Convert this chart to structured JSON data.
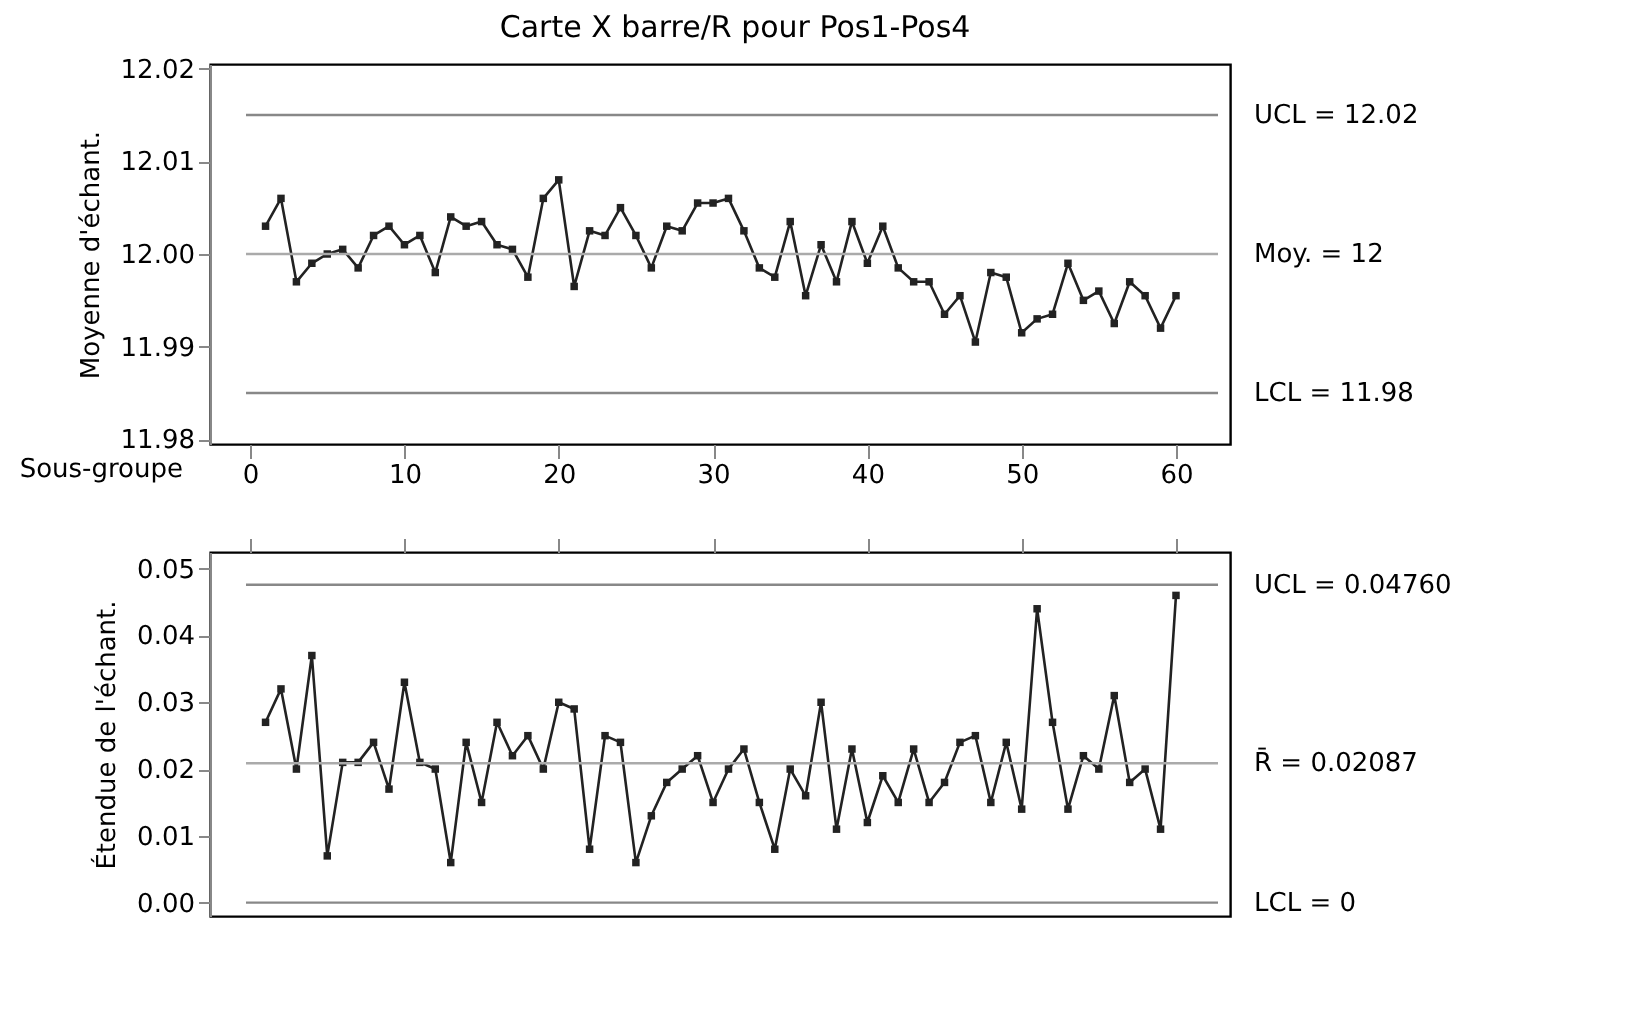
{
  "chart_data": [
    {
      "type": "line",
      "title": "Carte X barre/R pour Pos1-Pos4",
      "xlabel": "Sous-groupe",
      "ylabel": "Moyenne d'échant.",
      "marker": "square",
      "line_style": "solid",
      "grid": false,
      "x": [
        1,
        2,
        3,
        4,
        5,
        6,
        7,
        8,
        9,
        10,
        11,
        12,
        13,
        14,
        15,
        16,
        17,
        18,
        19,
        20,
        21,
        22,
        23,
        24,
        25,
        26,
        27,
        28,
        29,
        30,
        31,
        32,
        33,
        34,
        35,
        36,
        37,
        38,
        39,
        40,
        41,
        42,
        43,
        44,
        45,
        46,
        47,
        48,
        49,
        50,
        51,
        52,
        53,
        54,
        55,
        56,
        57,
        58,
        59,
        60
      ],
      "series": [
        {
          "color": "#222222",
          "values": [
            12.003,
            12.006,
            11.997,
            11.999,
            12.0,
            12.0005,
            11.9985,
            12.002,
            12.003,
            12.001,
            12.002,
            11.998,
            12.004,
            12.003,
            12.0035,
            12.001,
            12.0005,
            11.9975,
            12.006,
            12.008,
            11.9965,
            12.0025,
            12.002,
            12.005,
            12.002,
            11.9985,
            12.003,
            12.0025,
            12.0055,
            12.0055,
            12.006,
            12.0025,
            11.9985,
            11.9975,
            12.0035,
            11.9955,
            12.001,
            11.997,
            12.0035,
            11.999,
            12.003,
            11.9985,
            11.997,
            11.997,
            11.9935,
            11.9955,
            11.9905,
            11.998,
            11.9975,
            11.9915,
            11.993,
            11.9935,
            11.999,
            11.995,
            11.996,
            11.9925,
            11.997,
            11.9955,
            11.992,
            11.9955
          ]
        }
      ],
      "xlim": [
        -2.6,
        63.5
      ],
      "xticks": [
        0,
        10,
        20,
        30,
        40,
        50,
        60
      ],
      "ylim": [
        11.9795,
        12.0205
      ],
      "yticks": [
        {
          "value": 11.98,
          "label": "11.98"
        },
        {
          "value": 11.99,
          "label": "11.99"
        },
        {
          "value": 12.0,
          "label": "12.00"
        },
        {
          "value": 12.01,
          "label": "12.01"
        },
        {
          "value": 12.02,
          "label": "12.02"
        }
      ],
      "ref_lines": [
        {
          "axis": "y",
          "value": 12.015,
          "label": "UCL = 12.02",
          "color": "#888888"
        },
        {
          "axis": "y",
          "value": 12.0,
          "label": "Moy. = 12",
          "color": "#aaaaaa"
        },
        {
          "axis": "y",
          "value": 11.985,
          "label": "LCL = 11.98",
          "color": "#888888"
        }
      ]
    },
    {
      "type": "line",
      "ylabel": "Étendue de l'échant.",
      "marker": "square",
      "line_style": "solid",
      "grid": false,
      "tick_labels": "y",
      "x": [
        1,
        2,
        3,
        4,
        5,
        6,
        7,
        8,
        9,
        10,
        11,
        12,
        13,
        14,
        15,
        16,
        17,
        18,
        19,
        20,
        21,
        22,
        23,
        24,
        25,
        26,
        27,
        28,
        29,
        30,
        31,
        32,
        33,
        34,
        35,
        36,
        37,
        38,
        39,
        40,
        41,
        42,
        43,
        44,
        45,
        46,
        47,
        48,
        49,
        50,
        51,
        52,
        53,
        54,
        55,
        56,
        57,
        58,
        59,
        60
      ],
      "series": [
        {
          "color": "#222222",
          "values": [
            0.027,
            0.032,
            0.02,
            0.037,
            0.007,
            0.021,
            0.021,
            0.024,
            0.017,
            0.033,
            0.021,
            0.02,
            0.006,
            0.024,
            0.015,
            0.027,
            0.022,
            0.025,
            0.02,
            0.03,
            0.029,
            0.008,
            0.025,
            0.024,
            0.006,
            0.013,
            0.018,
            0.02,
            0.022,
            0.015,
            0.02,
            0.023,
            0.015,
            0.008,
            0.02,
            0.016,
            0.03,
            0.011,
            0.023,
            0.012,
            0.019,
            0.015,
            0.023,
            0.015,
            0.018,
            0.024,
            0.025,
            0.015,
            0.024,
            0.014,
            0.044,
            0.027,
            0.014,
            0.022,
            0.02,
            0.031,
            0.018,
            0.02,
            0.011,
            0.046
          ]
        }
      ],
      "xlim": [
        -2.6,
        63.5
      ],
      "xticks": [
        0,
        10,
        20,
        30,
        40,
        50,
        60
      ],
      "ylim": [
        -0.002,
        0.0525
      ],
      "yticks": [
        {
          "value": 0.0,
          "label": "0.00"
        },
        {
          "value": 0.01,
          "label": "0.01"
        },
        {
          "value": 0.02,
          "label": "0.02"
        },
        {
          "value": 0.03,
          "label": "0.03"
        },
        {
          "value": 0.04,
          "label": "0.04"
        },
        {
          "value": 0.05,
          "label": "0.05"
        }
      ],
      "ref_lines": [
        {
          "axis": "y",
          "value": 0.0476,
          "label": "UCL = 0.04760",
          "color": "#888888"
        },
        {
          "axis": "y",
          "value": 0.02087,
          "label": "R̄ = 0.02087",
          "color": "#aaaaaa"
        },
        {
          "axis": "y",
          "value": 0.0,
          "label": "LCL = 0",
          "color": "#888888"
        }
      ]
    }
  ]
}
